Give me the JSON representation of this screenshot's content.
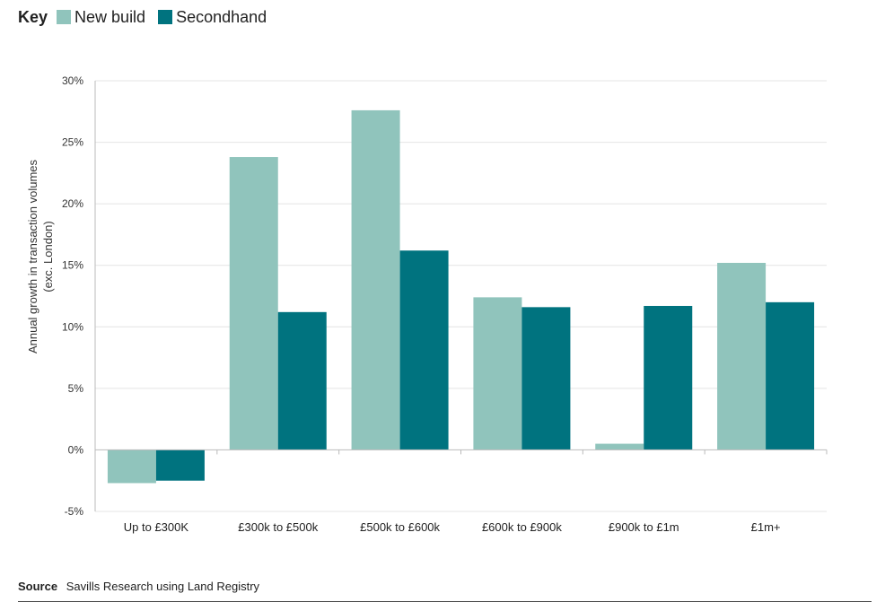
{
  "key": {
    "title": "Key",
    "items": [
      {
        "label": "New build",
        "color": "#90c4bc"
      },
      {
        "label": "Secondhand",
        "color": "#00737f"
      }
    ]
  },
  "chart_data": {
    "type": "bar",
    "categories": [
      "Up to £300K",
      "£300k to £500k",
      "£500k to £600k",
      "£600k to £900k",
      "£900k to £1m",
      "£1m+"
    ],
    "series": [
      {
        "name": "New build",
        "values": [
          -2.7,
          23.8,
          27.6,
          12.4,
          0.5,
          15.2
        ],
        "color": "#90c4bc"
      },
      {
        "name": "Secondhand",
        "values": [
          -2.5,
          11.2,
          16.2,
          11.6,
          11.7,
          12.0
        ],
        "color": "#00737f"
      }
    ],
    "ylabel_line1": "Annual growth in transaction volumes",
    "ylabel_line2": "(exc. London)",
    "ylim": [
      -5,
      30
    ],
    "yticks": [
      "-5%",
      "0%",
      "5%",
      "10%",
      "15%",
      "20%",
      "25%",
      "30%"
    ],
    "ytick_values": [
      -5,
      0,
      5,
      10,
      15,
      20,
      25,
      30
    ],
    "grid": true,
    "legend": "top-left"
  },
  "source": {
    "title": "Source",
    "text": "Savills Research using Land Registry"
  }
}
